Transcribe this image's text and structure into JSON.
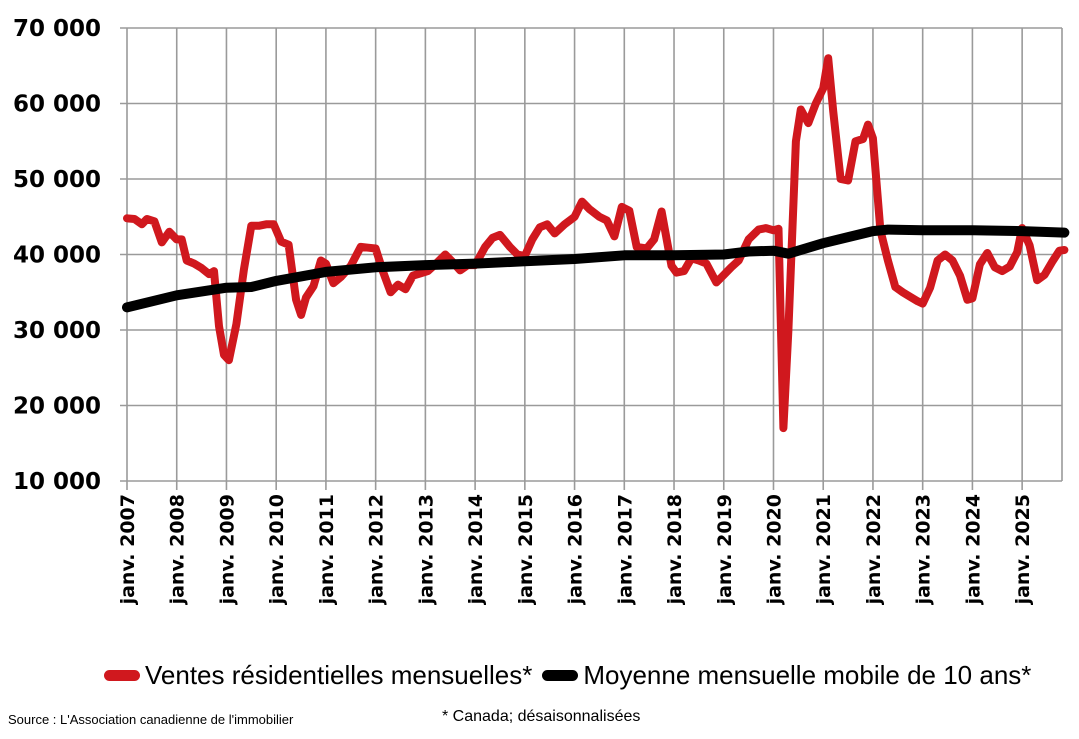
{
  "chart_data": {
    "type": "line",
    "title": "",
    "xlabel": "",
    "ylabel": "",
    "ylim": [
      10000,
      70000
    ],
    "yticks": [
      10000,
      20000,
      30000,
      40000,
      50000,
      60000,
      70000
    ],
    "ytick_labels": [
      "10 000",
      "20 000",
      "30 000",
      "40 000",
      "50 000",
      "60 000",
      "70 000"
    ],
    "xtick_labels": [
      "janv. 2007",
      "janv. 2008",
      "janv. 2009",
      "janv. 2010",
      "janv. 2011",
      "janv. 2012",
      "janv. 2013",
      "janv. 2014",
      "janv. 2015",
      "janv. 2016",
      "janv. 2017",
      "janv. 2018",
      "janv. 2019",
      "janv. 2020",
      "janv. 2021",
      "janv. 2022",
      "janv. 2023",
      "janv. 2024",
      "janv. 2025"
    ],
    "grid": true,
    "legend_position": "bottom",
    "series": [
      {
        "name": "Ventes résidentielles mensuelles*",
        "color": "#d0181e",
        "x": [
          2007.0,
          2007.15,
          2007.3,
          2007.4,
          2007.55,
          2007.7,
          2007.85,
          2008.0,
          2008.1,
          2008.2,
          2008.35,
          2008.5,
          2008.65,
          2008.75,
          2008.85,
          2008.95,
          2009.05,
          2009.2,
          2009.35,
          2009.5,
          2009.65,
          2009.8,
          2009.95,
          2010.1,
          2010.25,
          2010.4,
          2010.5,
          2010.6,
          2010.75,
          2010.9,
          2011.0,
          2011.15,
          2011.3,
          2011.5,
          2011.7,
          2011.85,
          2012.0,
          2012.15,
          2012.3,
          2012.45,
          2012.6,
          2012.75,
          2012.9,
          2013.05,
          2013.2,
          2013.4,
          2013.55,
          2013.7,
          2013.85,
          2014.0,
          2014.2,
          2014.35,
          2014.5,
          2014.7,
          2014.85,
          2015.0,
          2015.15,
          2015.3,
          2015.45,
          2015.6,
          2015.8,
          2016.0,
          2016.15,
          2016.3,
          2016.5,
          2016.65,
          2016.8,
          2016.95,
          2017.1,
          2017.25,
          2017.45,
          2017.6,
          2017.75,
          2017.95,
          2018.05,
          2018.2,
          2018.35,
          2018.5,
          2018.65,
          2018.85,
          2019.0,
          2019.15,
          2019.3,
          2019.5,
          2019.7,
          2019.85,
          2020.0,
          2020.1,
          2020.2,
          2020.3,
          2020.45,
          2020.55,
          2020.7,
          2020.85,
          2021.0,
          2021.1,
          2021.2,
          2021.35,
          2021.5,
          2021.65,
          2021.8,
          2021.9,
          2022.0,
          2022.15,
          2022.3,
          2022.45,
          2022.6,
          2022.75,
          2022.9,
          2023.0,
          2023.15,
          2023.3,
          2023.45,
          2023.6,
          2023.75,
          2023.9,
          2024.0,
          2024.15,
          2024.3,
          2024.45,
          2024.6,
          2024.75,
          2024.9,
          2025.0,
          2025.15,
          2025.3,
          2025.45,
          2025.6,
          2025.75,
          2025.85
        ],
        "values": [
          44800,
          44700,
          44000,
          44700,
          44400,
          41600,
          43000,
          42000,
          42000,
          39200,
          38800,
          38200,
          37400,
          37800,
          30500,
          26700,
          26000,
          30800,
          38000,
          43800,
          43800,
          44000,
          44000,
          41700,
          41300,
          34000,
          32000,
          34300,
          35800,
          39200,
          38800,
          36200,
          37000,
          38500,
          41000,
          40900,
          40800,
          37700,
          35000,
          36000,
          35400,
          37200,
          37500,
          37800,
          38700,
          40000,
          39000,
          37900,
          38600,
          38600,
          41000,
          42200,
          42600,
          41000,
          40000,
          39800,
          42000,
          43600,
          44000,
          42800,
          44000,
          45000,
          47000,
          46000,
          45000,
          44500,
          42400,
          46300,
          45800,
          41000,
          40800,
          42000,
          45700,
          38500,
          37600,
          37800,
          39500,
          39200,
          38800,
          36300,
          37300,
          38300,
          39200,
          42000,
          43300,
          43500,
          43200,
          43400,
          17000,
          30000,
          55000,
          59200,
          57400,
          60000,
          62000,
          66000,
          59000,
          50000,
          49800,
          55000,
          55300,
          57200,
          55400,
          43200,
          39200,
          35700,
          35000,
          34400,
          33800,
          33500,
          35600,
          39200,
          40000,
          39200,
          37200,
          34000,
          34200,
          38700,
          40200,
          38300,
          37800,
          38400,
          40300,
          43500,
          41200,
          36600,
          37300,
          39000,
          40500,
          40600
        ]
      },
      {
        "name": "Moyenne mensuelle mobile de 10 ans*",
        "color": "#000000",
        "x": [
          2007.0,
          2008.0,
          2009.0,
          2009.5,
          2010.0,
          2011.0,
          2012.0,
          2013.0,
          2014.0,
          2015.0,
          2016.0,
          2017.0,
          2018.0,
          2019.0,
          2019.5,
          2020.0,
          2020.3,
          2021.0,
          2021.5,
          2022.0,
          2022.3,
          2023.0,
          2024.0,
          2025.0,
          2025.85
        ],
        "values": [
          33000,
          34600,
          35600,
          35700,
          36500,
          37700,
          38300,
          38600,
          38800,
          39100,
          39400,
          39900,
          39900,
          40000,
          40400,
          40500,
          40100,
          41500,
          42300,
          43100,
          43300,
          43200,
          43200,
          43100,
          42900
        ]
      }
    ]
  },
  "legend": {
    "items": [
      {
        "label": "Ventes résidentielles mensuelles*",
        "color": "#d0181e"
      },
      {
        "label": "Moyenne mensuelle mobile de 10 ans*",
        "color": "#000000"
      }
    ]
  },
  "footnote": "* Canada; désaisonnalisées",
  "source": "Source : L'Association canadienne de l'immobilier"
}
